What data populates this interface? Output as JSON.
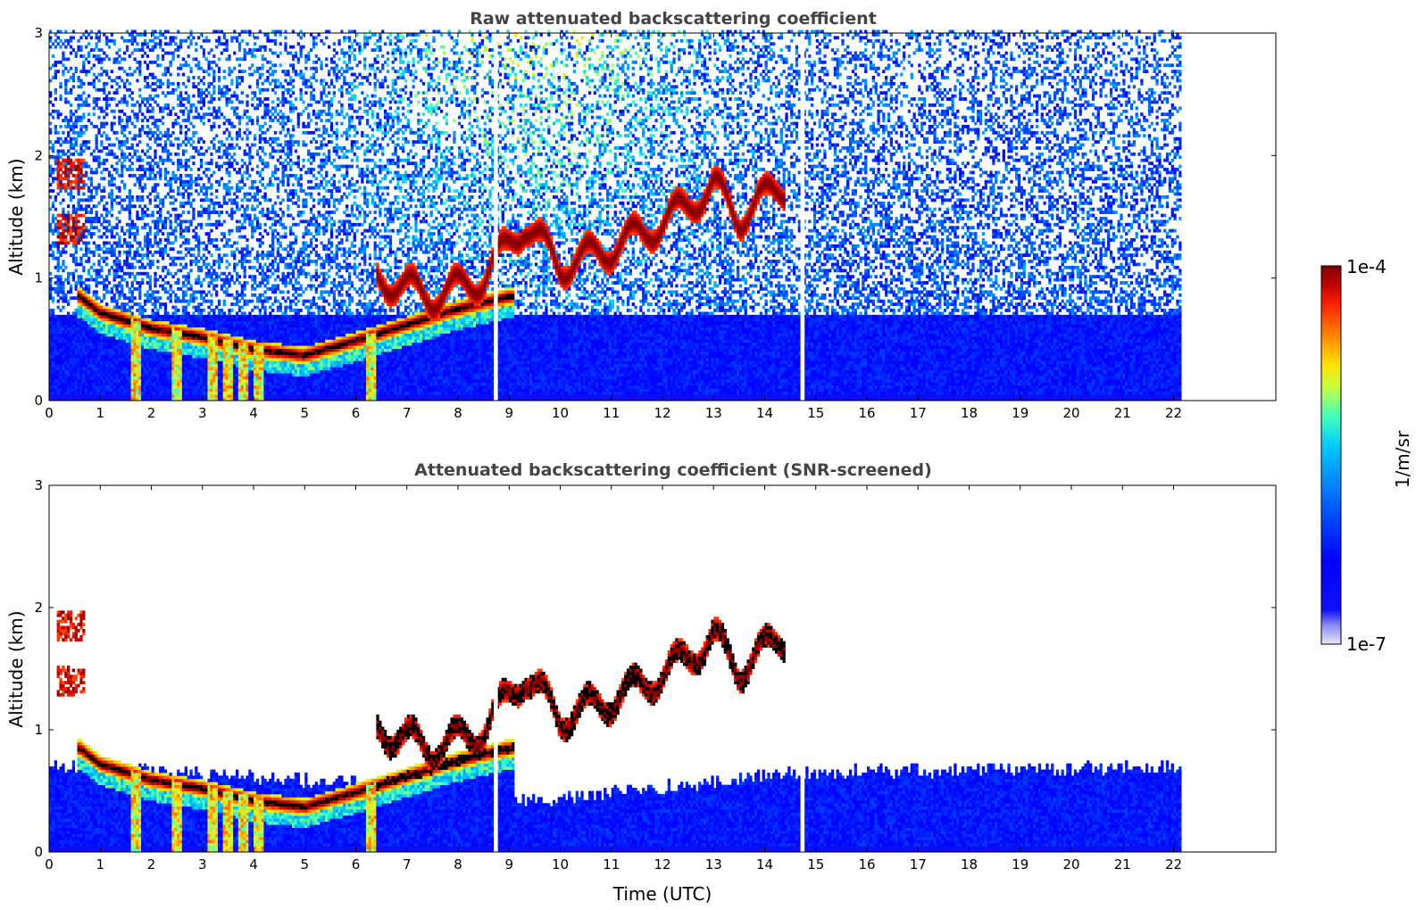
{
  "chart_data": [
    {
      "type": "heatmap",
      "title": "Raw attenuated backscattering coefficient",
      "xlabel": "",
      "ylabel": "Altitude (km)",
      "xlim": [
        0,
        24
      ],
      "ylim": [
        0,
        3
      ],
      "x_ticks": [
        0,
        1,
        2,
        3,
        4,
        5,
        6,
        7,
        8,
        9,
        10,
        11,
        12,
        13,
        14,
        15,
        16,
        17,
        18,
        19,
        20,
        21,
        22
      ],
      "y_ticks": [
        0,
        1,
        2,
        3
      ],
      "data_end_hour": 22.15,
      "gap_hours": [
        8.7,
        14.7
      ],
      "features": {
        "residual_layer_top_km": [
          [
            0.6,
            0.88
          ],
          [
            1.0,
            0.75
          ],
          [
            2.0,
            0.62
          ],
          [
            3.0,
            0.55
          ],
          [
            4.0,
            0.45
          ],
          [
            5.0,
            0.4
          ],
          [
            6.0,
            0.52
          ],
          [
            7.0,
            0.65
          ],
          [
            8.0,
            0.78
          ],
          [
            9.0,
            0.88
          ]
        ],
        "rising_boundary_layer_km": [
          [
            6.5,
            1.0
          ],
          [
            7.5,
            0.85
          ],
          [
            8.5,
            1.0
          ],
          [
            9.3,
            1.45
          ],
          [
            10.0,
            1.1
          ],
          [
            11.0,
            1.25
          ],
          [
            12.0,
            1.45
          ],
          [
            13.0,
            1.75
          ],
          [
            13.5,
            1.5
          ],
          [
            14.3,
            1.75
          ]
        ],
        "early_cloud_km": [
          [
            0.2,
            1.85
          ],
          [
            0.3,
            1.4
          ]
        ],
        "rain_fallstreaks_hour": [
          1.7,
          2.5,
          3.2,
          3.5,
          3.8,
          4.1,
          6.3
        ]
      }
    },
    {
      "type": "heatmap",
      "title": "Attenuated backscattering coefficient (SNR-screened)",
      "xlabel": "Time (UTC)",
      "ylabel": "Altitude (km)",
      "xlim": [
        0,
        24
      ],
      "ylim": [
        0,
        3
      ],
      "x_ticks": [
        0,
        1,
        2,
        3,
        4,
        5,
        6,
        7,
        8,
        9,
        10,
        11,
        12,
        13,
        14,
        15,
        16,
        17,
        18,
        19,
        20,
        21,
        22
      ],
      "y_ticks": [
        0,
        1,
        2,
        3
      ],
      "data_end_hour": 22.15,
      "gap_hours": [
        8.7,
        14.7
      ],
      "features": {
        "screened_lower_layer_top_km": [
          [
            0,
            0.72
          ],
          [
            6.5,
            0.55
          ],
          [
            7.0,
            0.4
          ],
          [
            9.0,
            0.4
          ],
          [
            12.5,
            0.55
          ],
          [
            14.7,
            0.65
          ],
          [
            22.1,
            0.7
          ]
        ]
      }
    }
  ],
  "colorbar": {
    "max_label": "1e-4",
    "min_label": "1e-7",
    "label": "1/m/sr",
    "stops": [
      "#e8e8f8",
      "#8a8af0",
      "#0000ff",
      "#0066ff",
      "#00c8ff",
      "#40ffc0",
      "#c8ff40",
      "#ffe000",
      "#ff8000",
      "#ff2000",
      "#c00000",
      "#800000"
    ]
  }
}
